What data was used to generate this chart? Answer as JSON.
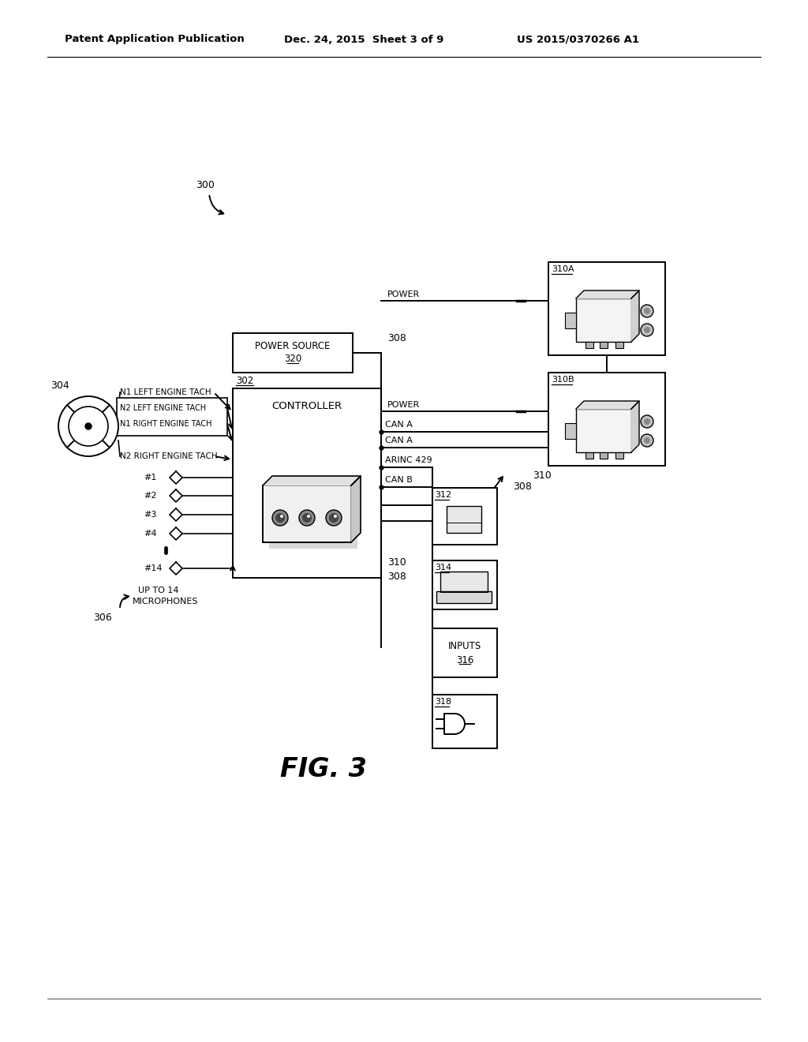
{
  "bg_color": "#ffffff",
  "header_left": "Patent Application Publication",
  "header_mid": "Dec. 24, 2015  Sheet 3 of 9",
  "header_right": "US 2015/0370266 A1"
}
